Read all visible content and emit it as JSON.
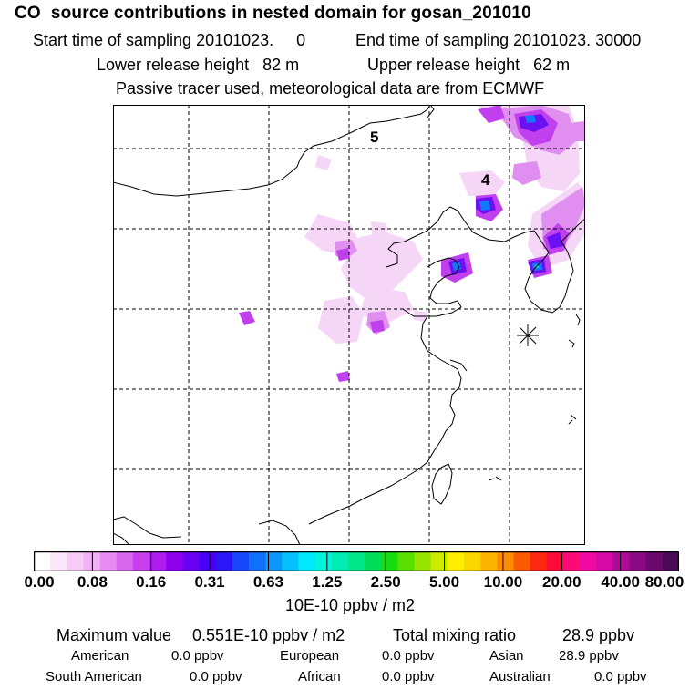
{
  "header": {
    "title": "CO  source contributions in nested domain for gosan_201010",
    "start_time_label": "Start time of sampling 20101023.     0",
    "end_time_label": "End time of sampling 20101023. 30000",
    "lower_release_label": "Lower release height   82 m",
    "upper_release_label": "Upper release height   62 m",
    "tracer_note": "Passive tracer used, meteorological data are from ECMWF"
  },
  "map": {
    "contour_labels": [
      "5",
      "4"
    ],
    "receptor_marker": "asterisk-icon"
  },
  "colorbar": {
    "colors": [
      "#ffffff",
      "#fbe6fb",
      "#f6ccf7",
      "#f0b2f3",
      "#e68cf0",
      "#d966ee",
      "#c840ee",
      "#b01cee",
      "#8c00ee",
      "#6a00f2",
      "#4a00f6",
      "#2a16f8",
      "#1848fa",
      "#1070fb",
      "#0c98fb",
      "#06c0fb",
      "#00e8fc",
      "#00f4dc",
      "#00ecb4",
      "#00e48a",
      "#00dc5a",
      "#18dc10",
      "#5ae000",
      "#96e400",
      "#ccec00",
      "#fcf000",
      "#fcd600",
      "#fcb400",
      "#fc8c00",
      "#fc5a00",
      "#fc2810",
      "#fc0a3a",
      "#fc0a78",
      "#f00aa0",
      "#d60aa6",
      "#b00a96",
      "#8a0a82",
      "#6a0a6e",
      "#4a0a56"
    ],
    "tick_labels": [
      "0.00",
      "0.08",
      "0.16",
      "0.31",
      "0.63",
      "1.25",
      "2.50",
      "5.00",
      "10.00",
      "20.00",
      "40.00",
      "80.00"
    ],
    "units": "10E-10 ppbv / m2"
  },
  "stats": {
    "maximum_label": "Maximum value",
    "maximum_value": "0.551E-10 ppbv / m2",
    "total_label": "Total mixing ratio",
    "total_value": "28.9 ppbv",
    "regions": [
      {
        "name": "American",
        "value": "0.0 ppbv"
      },
      {
        "name": "European",
        "value": "0.0 ppbv"
      },
      {
        "name": "Asian",
        "value": "28.9 ppbv"
      },
      {
        "name": "South American",
        "value": "0.0 ppbv"
      },
      {
        "name": "African",
        "value": "0.0 ppbv"
      },
      {
        "name": "Australian",
        "value": "0.0 ppbv"
      }
    ]
  }
}
